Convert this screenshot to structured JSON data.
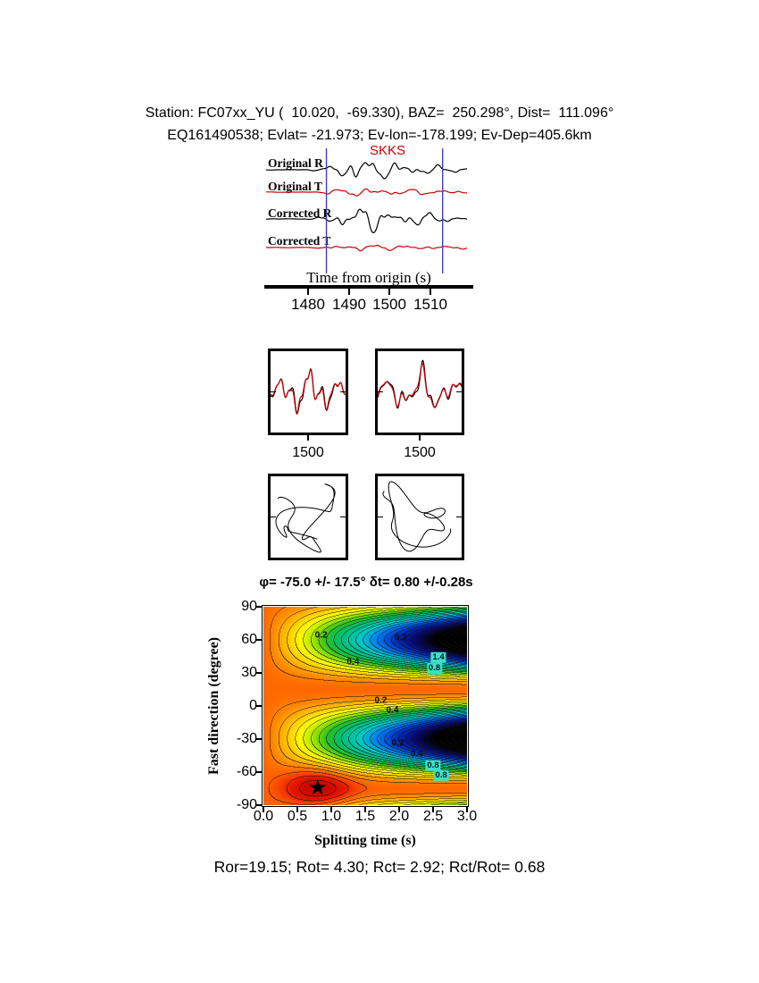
{
  "header": {
    "line1": "Station: FC07xx_YU (  10.020,  -69.330), BAZ=  250.298°, Dist=  111.096°",
    "line2": "EQ161490538; Evlat= -21.973; Ev-lon=-178.199; Ev-Dep=405.6km"
  },
  "waveforms": {
    "phase_label": "SKKS",
    "traces": [
      {
        "label": "Original R",
        "color": "#000000"
      },
      {
        "label": "Original T",
        "color": "#cc0000"
      },
      {
        "label": "Corrected R",
        "color": "#000000"
      },
      {
        "label": "Corrected T",
        "color": "#cc0000"
      }
    ]
  },
  "time_axis": {
    "label": "Time from origin (s)",
    "tick_labels": [
      "1480",
      "1490",
      "1500",
      "1510"
    ]
  },
  "small_panels": {
    "tick_label": "1500"
  },
  "contour": {
    "title": "φ= -75.0 +/- 17.5° δt= 0.80 +/-0.28s",
    "xlabel": "Splitting time (s)",
    "ylabel": "Fast direction (degree)",
    "xtick_labels": [
      "0.0",
      "0.5",
      "1.0",
      "1.5",
      "2.0",
      "2.5",
      "3.0"
    ],
    "ytick_labels": [
      "90",
      "60",
      "30",
      "0",
      "-30",
      "-60",
      "-90"
    ],
    "best": {
      "dt_s": 0.8,
      "phi_deg": -75.0,
      "marker": "★"
    },
    "annotations": [
      {
        "value": "0.2",
        "t": 0.85,
        "phi": 64,
        "style": "plain"
      },
      {
        "value": "0.2",
        "t": 2.02,
        "phi": 62,
        "style": "plain"
      },
      {
        "value": "0.4",
        "t": 1.32,
        "phi": 40,
        "style": "plain"
      },
      {
        "value": "1.4",
        "t": 2.58,
        "phi": 44,
        "style": "box"
      },
      {
        "value": "0.8",
        "t": 2.52,
        "phi": 34,
        "style": "box"
      },
      {
        "value": "0.2",
        "t": 1.73,
        "phi": 5,
        "style": "plain"
      },
      {
        "value": "0.4",
        "t": 1.9,
        "phi": -4,
        "style": "plain"
      },
      {
        "value": "0.2",
        "t": 1.98,
        "phi": -34,
        "style": "plain"
      },
      {
        "value": "0.4",
        "t": 2.26,
        "phi": -44,
        "style": "plain"
      },
      {
        "value": "0.8",
        "t": 2.5,
        "phi": -54,
        "style": "box"
      },
      {
        "value": "0.8",
        "t": 2.62,
        "phi": -63,
        "style": "box"
      }
    ]
  },
  "footer": {
    "text": "Ror=19.15; Rot= 4.30; Rct= 2.92; Rct/Rot= 0.68",
    "values": {
      "Ror": 19.15,
      "Rot": 4.3,
      "Rct": 2.92,
      "Rct_over_Rot": 0.68
    }
  },
  "chart_data": [
    {
      "type": "line",
      "title": "Seismogram panel (radial / transverse, original and corrected)",
      "x_axis": {
        "label": "Time from origin (s)",
        "range": [
          1469.5,
          1520.5
        ],
        "ticks": [
          1480,
          1490,
          1500,
          1510
        ]
      },
      "phase_label": "SKKS",
      "pick_window_s": [
        1484.5,
        1513.0
      ],
      "series": [
        {
          "name": "Original R",
          "color": "#000000"
        },
        {
          "name": "Original T",
          "color": "#cc0000"
        },
        {
          "name": "Corrected R",
          "color": "#000000"
        },
        {
          "name": "Corrected T",
          "color": "#cc0000"
        }
      ]
    },
    {
      "type": "line",
      "title": "Fast/slow component overlays (black vs red)",
      "panels": 2,
      "x_tick": 1500
    },
    {
      "type": "scatter",
      "title": "Particle motion hodograms (original, corrected)",
      "panels": 2
    },
    {
      "type": "heatmap",
      "title": "φ= -75.0 +/- 17.5° δt= 0.80 +/-0.28s",
      "xlabel": "Splitting time (s)",
      "ylabel": "Fast direction (degree)",
      "x_range": [
        0,
        3
      ],
      "y_range": [
        -90,
        90
      ],
      "xticks": [
        0.0,
        0.5,
        1.0,
        1.5,
        2.0,
        2.5,
        3.0
      ],
      "yticks": [
        90,
        60,
        30,
        0,
        -30,
        -60,
        -90
      ],
      "best_solution": {
        "delay_time_s": 0.8,
        "delay_time_err_s": 0.28,
        "fast_direction_deg": -75.0,
        "fast_direction_err_deg": 17.5,
        "marker": "star"
      },
      "contour_levels_labeled": [
        0.2,
        0.4,
        0.8,
        1.4
      ],
      "colormap": "red-orange-yellow-green-cyan-blue-black (low to high energy)"
    }
  ]
}
